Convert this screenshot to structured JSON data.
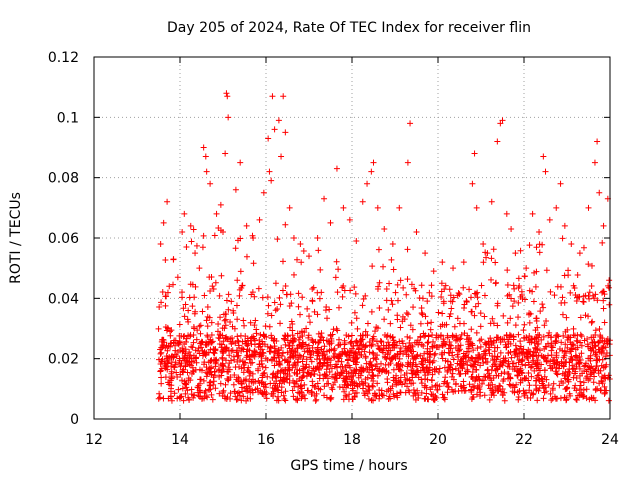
{
  "chart_data": {
    "type": "scatter",
    "title": "Day 205 of 2024, Rate Of TEC Index for receiver flin",
    "xlabel": "GPS time / hours",
    "ylabel": "ROTI / TECUs",
    "xlim": [
      12,
      24
    ],
    "ylim": [
      0,
      0.12
    ],
    "xticks": [
      "12",
      "14",
      "16",
      "18",
      "20",
      "22",
      "24"
    ],
    "yticks": [
      "0",
      "0.02",
      "0.04",
      "0.06",
      "0.08",
      "0.1",
      "0.12"
    ],
    "grid": true,
    "marker": "+",
    "color": "#ff0000",
    "series": [
      {
        "name": "ROTI",
        "points": [
          [
            13.55,
            0.058
          ],
          [
            13.62,
            0.065
          ],
          [
            13.7,
            0.072
          ],
          [
            13.75,
            0.044
          ],
          [
            13.85,
            0.053
          ],
          [
            13.95,
            0.047
          ],
          [
            14.05,
            0.062
          ],
          [
            14.1,
            0.068
          ],
          [
            14.15,
            0.057
          ],
          [
            14.25,
            0.064
          ],
          [
            14.35,
            0.055
          ],
          [
            14.45,
            0.05
          ],
          [
            14.55,
            0.09
          ],
          [
            14.6,
            0.087
          ],
          [
            14.62,
            0.082
          ],
          [
            14.7,
            0.078
          ],
          [
            14.85,
            0.068
          ],
          [
            14.95,
            0.071
          ],
          [
            15.0,
            0.062
          ],
          [
            15.05,
            0.088
          ],
          [
            15.08,
            0.108
          ],
          [
            15.1,
            0.107
          ],
          [
            15.12,
            0.1
          ],
          [
            15.3,
            0.076
          ],
          [
            15.4,
            0.085
          ],
          [
            15.55,
            0.064
          ],
          [
            15.7,
            0.06
          ],
          [
            15.85,
            0.066
          ],
          [
            15.95,
            0.075
          ],
          [
            16.05,
            0.093
          ],
          [
            16.08,
            0.082
          ],
          [
            16.12,
            0.079
          ],
          [
            16.15,
            0.107
          ],
          [
            16.2,
            0.096
          ],
          [
            16.3,
            0.099
          ],
          [
            16.35,
            0.087
          ],
          [
            16.4,
            0.107
          ],
          [
            16.45,
            0.095
          ],
          [
            16.55,
            0.07
          ],
          [
            16.65,
            0.06
          ],
          [
            16.8,
            0.058
          ],
          [
            17.0,
            0.054
          ],
          [
            17.2,
            0.06
          ],
          [
            17.35,
            0.073
          ],
          [
            17.5,
            0.065
          ],
          [
            17.65,
            0.083
          ],
          [
            17.8,
            0.07
          ],
          [
            17.95,
            0.066
          ],
          [
            18.1,
            0.059
          ],
          [
            18.25,
            0.072
          ],
          [
            18.35,
            0.078
          ],
          [
            18.45,
            0.082
          ],
          [
            18.5,
            0.085
          ],
          [
            18.6,
            0.07
          ],
          [
            18.75,
            0.063
          ],
          [
            18.95,
            0.058
          ],
          [
            19.1,
            0.07
          ],
          [
            19.3,
            0.085
          ],
          [
            19.35,
            0.098
          ],
          [
            19.5,
            0.062
          ],
          [
            19.7,
            0.055
          ],
          [
            19.9,
            0.049
          ],
          [
            20.1,
            0.052
          ],
          [
            20.35,
            0.05
          ],
          [
            20.6,
            0.052
          ],
          [
            20.8,
            0.078
          ],
          [
            20.85,
            0.088
          ],
          [
            20.9,
            0.07
          ],
          [
            21.05,
            0.058
          ],
          [
            21.15,
            0.055
          ],
          [
            21.25,
            0.072
          ],
          [
            21.38,
            0.092
          ],
          [
            21.45,
            0.098
          ],
          [
            21.5,
            0.099
          ],
          [
            21.6,
            0.068
          ],
          [
            21.7,
            0.063
          ],
          [
            21.8,
            0.055
          ],
          [
            22.05,
            0.05
          ],
          [
            22.2,
            0.068
          ],
          [
            22.35,
            0.062
          ],
          [
            22.45,
            0.087
          ],
          [
            22.5,
            0.082
          ],
          [
            22.6,
            0.066
          ],
          [
            22.75,
            0.07
          ],
          [
            22.85,
            0.078
          ],
          [
            22.95,
            0.064
          ],
          [
            23.1,
            0.058
          ],
          [
            23.3,
            0.055
          ],
          [
            23.5,
            0.07
          ],
          [
            23.65,
            0.085
          ],
          [
            23.7,
            0.092
          ],
          [
            23.75,
            0.075
          ],
          [
            23.85,
            0.064
          ],
          [
            23.95,
            0.073
          ],
          [
            23.98,
            0.046
          ]
        ]
      }
    ]
  }
}
